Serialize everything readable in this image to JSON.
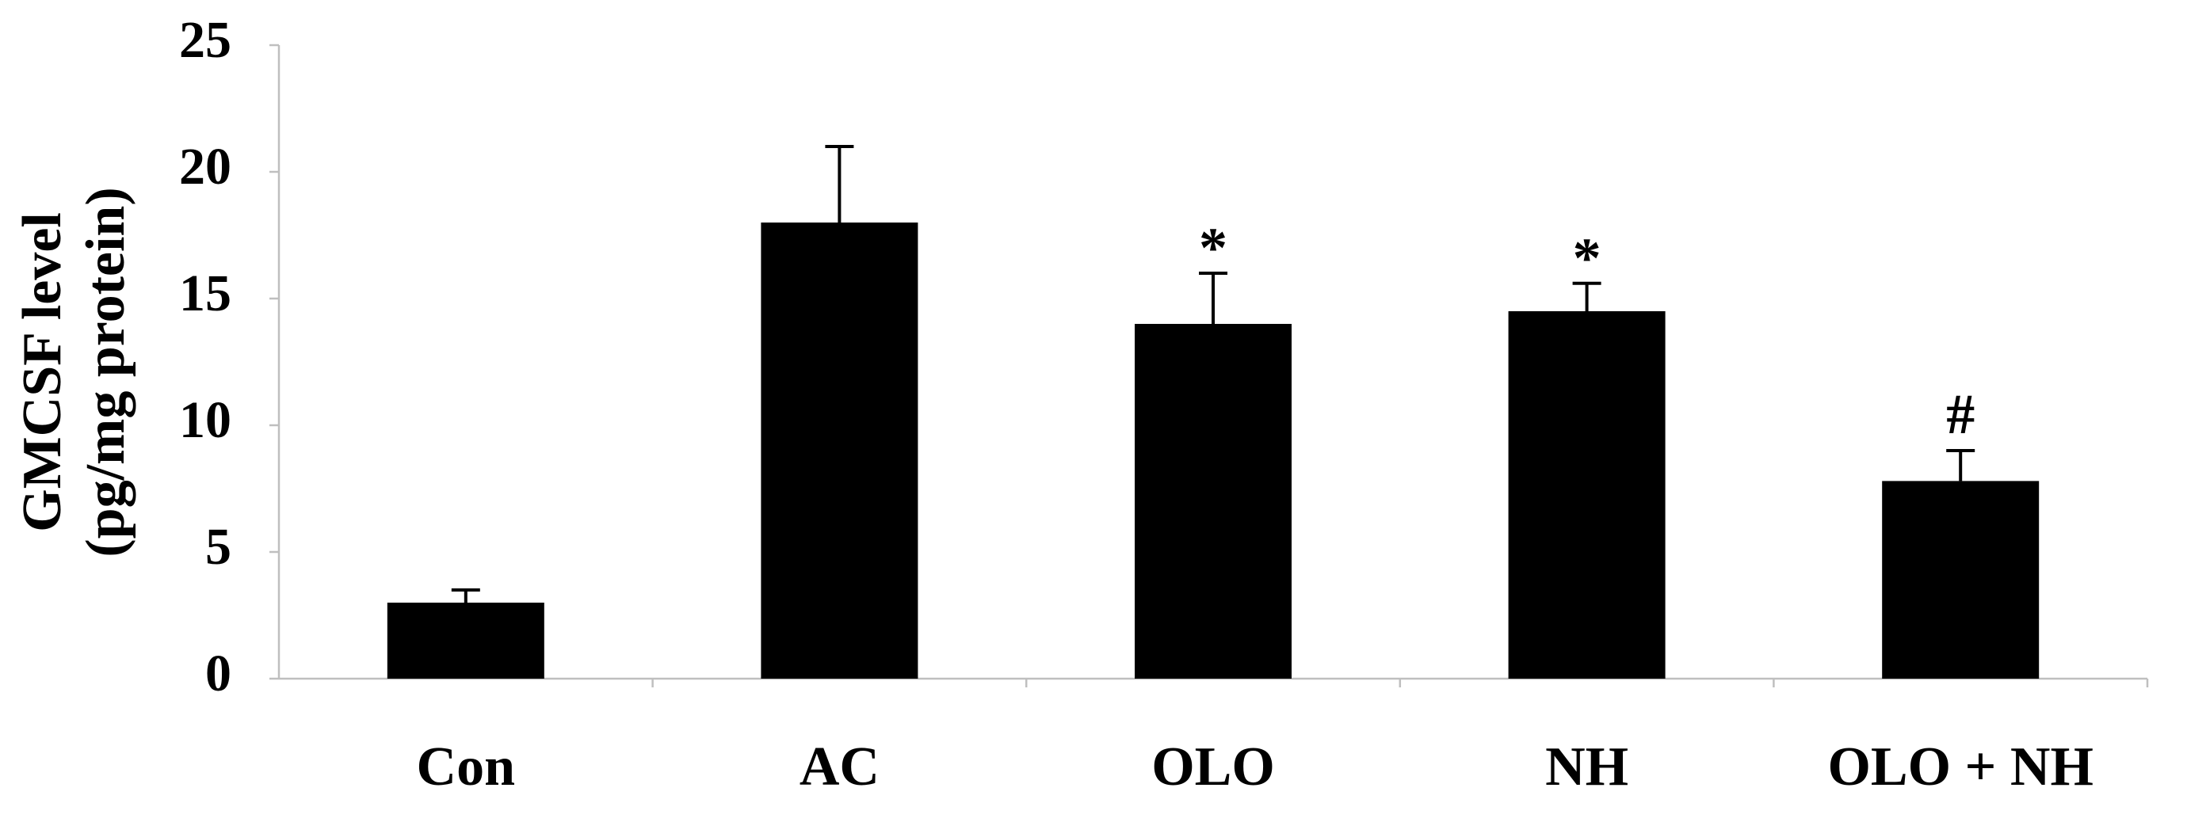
{
  "chart_data": {
    "type": "bar",
    "categories": [
      "Con",
      "AC",
      "OLO",
      "NH",
      "OLO + NH"
    ],
    "values": [
      3.0,
      18.0,
      14.0,
      14.5,
      7.8
    ],
    "error_upper": [
      3.5,
      21.0,
      16.0,
      15.6,
      9.0
    ],
    "annotations": [
      "",
      "",
      "*",
      "*",
      "#"
    ],
    "title": "",
    "xlabel": "",
    "ylabel_lines": [
      "GMCSF level",
      "(pg/mg protein)"
    ],
    "ylim": [
      0,
      25
    ],
    "yticks": [
      0,
      5,
      10,
      15,
      20,
      25
    ],
    "grid": false,
    "bar_color": "#000000",
    "axis_color": "#bfbfbf"
  }
}
